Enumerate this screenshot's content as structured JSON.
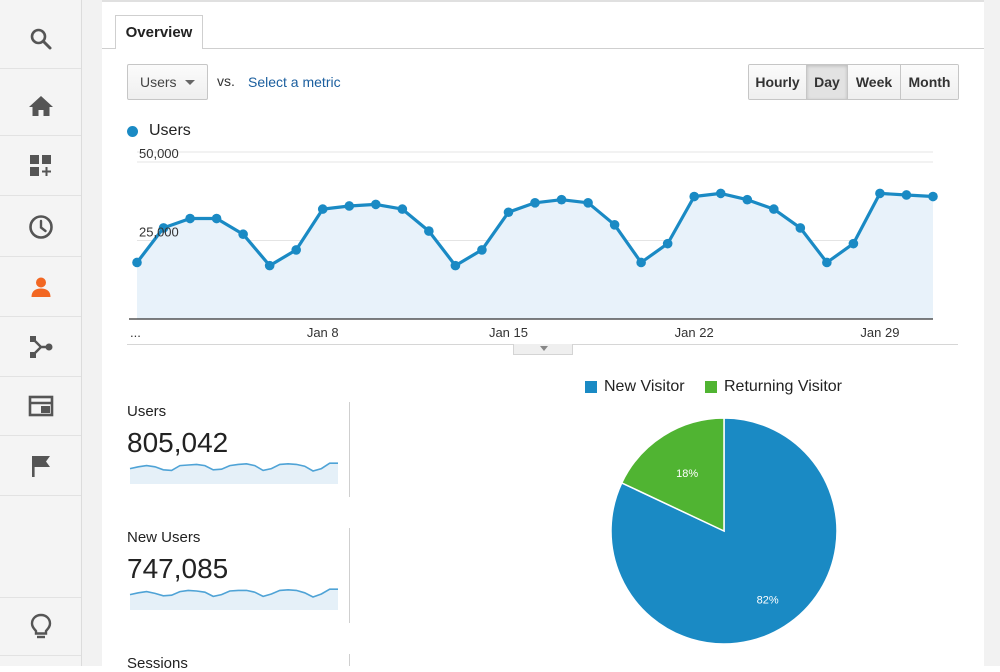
{
  "sidebar": {
    "items": [
      {
        "icon": "search-icon",
        "active": false
      },
      {
        "icon": "home-icon",
        "active": false
      },
      {
        "icon": "customization-icon",
        "active": false
      },
      {
        "icon": "realtime-clock-icon",
        "active": false
      },
      {
        "icon": "audience-person-icon",
        "active": true
      },
      {
        "icon": "acquisition-icon",
        "active": false
      },
      {
        "icon": "behavior-icon",
        "active": false
      },
      {
        "icon": "conversions-flag-icon",
        "active": false
      }
    ],
    "bottom_icon": "lightbulb-icon",
    "accent_color": "#f26722",
    "icon_color": "#555555"
  },
  "tab": {
    "label": "Overview"
  },
  "toolbar": {
    "metric_select": "Users",
    "vs_label": "vs.",
    "select_metric_link": "Select a metric",
    "granularity": [
      "Hourly",
      "Day",
      "Week",
      "Month"
    ],
    "active_granularity": "Day"
  },
  "chart_data": [
    {
      "type": "area",
      "series": [
        {
          "name": "Users",
          "color": "#1a8ac4",
          "values": [
            18000,
            29000,
            32000,
            32000,
            27000,
            17000,
            22000,
            35000,
            36000,
            36500,
            35000,
            28000,
            17000,
            22000,
            34000,
            37000,
            38000,
            37000,
            30000,
            18000,
            24000,
            39000,
            40000,
            38000,
            35000,
            29000,
            18000,
            24000,
            40000,
            39500,
            39000
          ]
        }
      ],
      "x_tick_labels": [
        "...",
        "Jan 8",
        "Jan 15",
        "Jan 22",
        "Jan 29"
      ],
      "y_tick_labels": [
        "50,000",
        "25,000"
      ],
      "ylim": [
        0,
        50000
      ],
      "grid": true
    },
    {
      "type": "pie",
      "labels": [
        "New Visitor",
        "Returning Visitor"
      ],
      "values": [
        82,
        18
      ],
      "slice_labels": [
        "82%",
        "18%"
      ],
      "colors": [
        "#1a8ac4",
        "#50b432"
      ],
      "legend": "top"
    }
  ],
  "stats": [
    {
      "label": "Users",
      "value": "805,042"
    },
    {
      "label": "New Users",
      "value": "747,085"
    },
    {
      "label": "Sessions",
      "value": ""
    }
  ],
  "sparklines": [
    [
      0.55,
      0.4,
      0.3,
      0.4,
      0.65,
      0.7,
      0.3,
      0.25,
      0.2,
      0.3,
      0.65,
      0.6,
      0.3,
      0.2,
      0.15,
      0.3,
      0.7,
      0.55,
      0.2,
      0.15,
      0.2,
      0.35,
      0.75,
      0.55,
      0.1,
      0.1
    ],
    [
      0.55,
      0.4,
      0.3,
      0.45,
      0.65,
      0.6,
      0.3,
      0.2,
      0.25,
      0.35,
      0.7,
      0.55,
      0.25,
      0.2,
      0.2,
      0.35,
      0.7,
      0.5,
      0.2,
      0.15,
      0.2,
      0.4,
      0.75,
      0.5,
      0.1,
      0.1
    ]
  ]
}
